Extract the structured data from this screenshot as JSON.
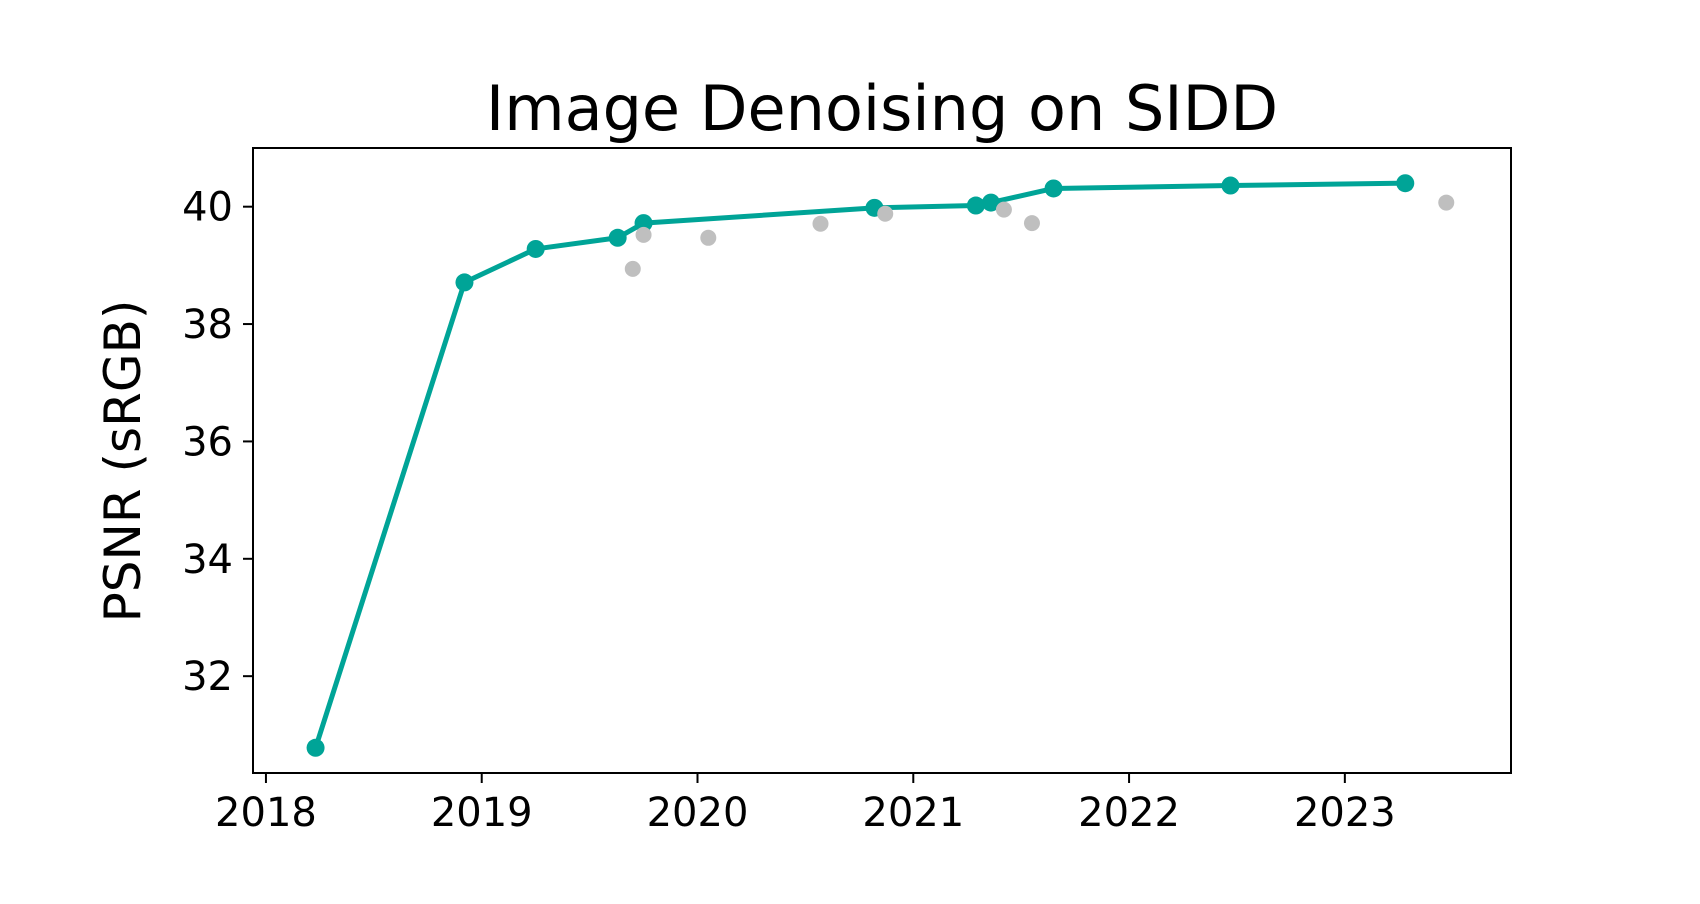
{
  "chart_data": {
    "type": "scatter",
    "title": "Image Denoising on SIDD",
    "xlabel": "",
    "ylabel": "PSNR (sRGB)",
    "xlim": [
      2017.94,
      2023.77
    ],
    "ylim": [
      30.35,
      41.0
    ],
    "x_ticks": [
      2018,
      2019,
      2020,
      2021,
      2022,
      2023
    ],
    "y_ticks": [
      32,
      34,
      36,
      38,
      40
    ],
    "grid": false,
    "legend": null,
    "colors": {
      "frontier": "#00a497",
      "other": "#bfbfbf",
      "axes": "#000000"
    },
    "series": [
      {
        "role": "frontier",
        "line": true,
        "points": [
          {
            "x": 2018.23,
            "y": 30.78
          },
          {
            "x": 2018.92,
            "y": 38.71
          },
          {
            "x": 2019.25,
            "y": 39.28
          },
          {
            "x": 2019.63,
            "y": 39.47
          },
          {
            "x": 2019.75,
            "y": 39.72
          },
          {
            "x": 2020.82,
            "y": 39.98
          },
          {
            "x": 2021.29,
            "y": 40.02
          },
          {
            "x": 2021.36,
            "y": 40.07
          },
          {
            "x": 2021.65,
            "y": 40.31
          },
          {
            "x": 2022.47,
            "y": 40.36
          },
          {
            "x": 2023.28,
            "y": 40.4
          }
        ]
      },
      {
        "role": "other",
        "line": false,
        "points": [
          {
            "x": 2019.7,
            "y": 38.94
          },
          {
            "x": 2019.75,
            "y": 39.52
          },
          {
            "x": 2020.05,
            "y": 39.47
          },
          {
            "x": 2020.57,
            "y": 39.71
          },
          {
            "x": 2020.87,
            "y": 39.88
          },
          {
            "x": 2021.42,
            "y": 39.95
          },
          {
            "x": 2021.55,
            "y": 39.72
          },
          {
            "x": 2023.47,
            "y": 40.07
          }
        ]
      }
    ]
  }
}
